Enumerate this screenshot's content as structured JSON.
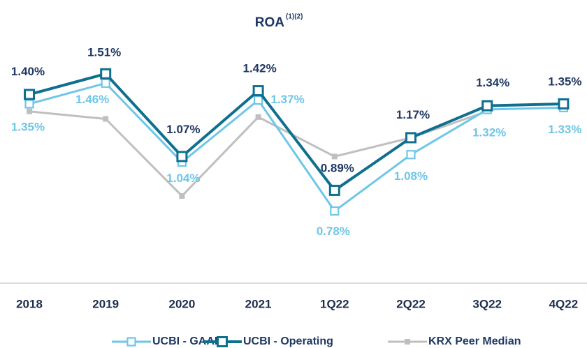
{
  "chart_data": {
    "type": "line",
    "title": "ROA",
    "title_note": "(1)(2)",
    "categories": [
      "2018",
      "2019",
      "2020",
      "2021",
      "1Q22",
      "2Q22",
      "3Q22",
      "4Q22"
    ],
    "series": [
      {
        "name": "UCBI - GAAP",
        "color": "#6ec6e8",
        "label_color": "#6ec6e8",
        "values": [
          1.35,
          1.46,
          1.04,
          1.37,
          0.78,
          1.08,
          1.32,
          1.33
        ],
        "value_labels": [
          "1.35%",
          "1.46%",
          "1.04%",
          "1.37%",
          "0.78%",
          "1.08%",
          "1.32%",
          "1.33%"
        ]
      },
      {
        "name": "UCBI - Operating",
        "color": "#0e6f8f",
        "label_color": "#1f3864",
        "values": [
          1.4,
          1.51,
          1.07,
          1.42,
          0.89,
          1.17,
          1.34,
          1.35
        ],
        "value_labels": [
          "1.40%",
          "1.51%",
          "1.07%",
          "1.42%",
          "0.89%",
          "1.17%",
          "1.34%",
          "1.35%"
        ]
      },
      {
        "name": "KRX Peer Median",
        "color": "#bfbfbf",
        "values": [
          1.31,
          1.27,
          0.86,
          1.28,
          1.07,
          1.17,
          1.31,
          null
        ]
      }
    ],
    "ylim": [
      0.4,
      1.68
    ]
  }
}
